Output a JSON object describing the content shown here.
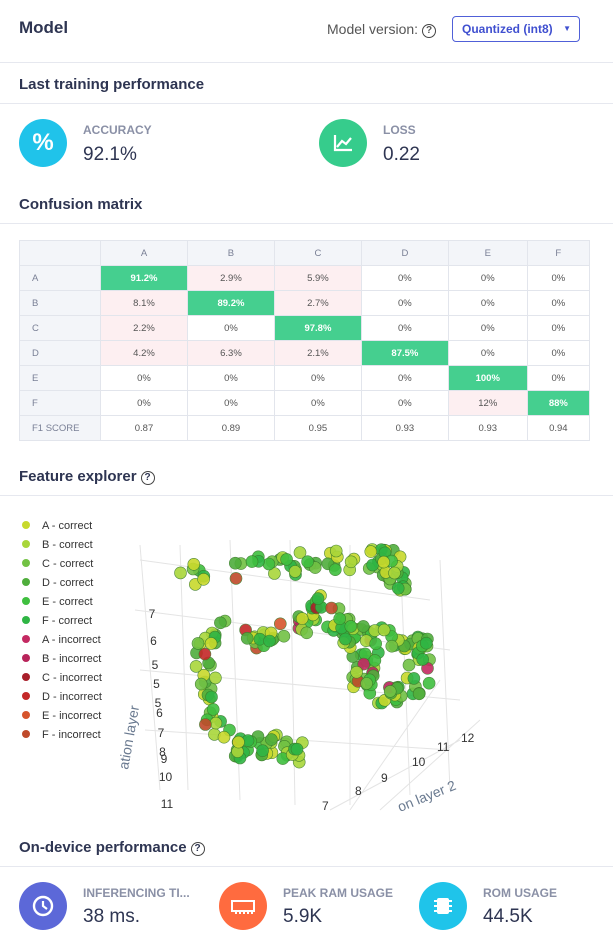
{
  "header": {
    "title": "Model",
    "version_label": "Model version:",
    "version_select": "Quantized (int8)"
  },
  "last_training": {
    "title": "Last training performance",
    "metrics": [
      {
        "label": "ACCURACY",
        "value": "92.1%"
      },
      {
        "label": "LOSS",
        "value": "0.22"
      }
    ]
  },
  "confusion_matrix": {
    "title": "Confusion matrix",
    "columns": [
      "A",
      "B",
      "C",
      "D",
      "E",
      "F"
    ],
    "rows": [
      {
        "label": "A",
        "cells": [
          "91.2%",
          "2.9%",
          "5.9%",
          "0%",
          "0%",
          "0%"
        ]
      },
      {
        "label": "B",
        "cells": [
          "8.1%",
          "89.2%",
          "2.7%",
          "0%",
          "0%",
          "0%"
        ]
      },
      {
        "label": "C",
        "cells": [
          "2.2%",
          "0%",
          "97.8%",
          "0%",
          "0%",
          "0%"
        ]
      },
      {
        "label": "D",
        "cells": [
          "4.2%",
          "6.3%",
          "2.1%",
          "87.5%",
          "0%",
          "0%"
        ]
      },
      {
        "label": "E",
        "cells": [
          "0%",
          "0%",
          "0%",
          "0%",
          "100%",
          "0%"
        ]
      },
      {
        "label": "F",
        "cells": [
          "0%",
          "0%",
          "0%",
          "0%",
          "12%",
          "88%"
        ]
      }
    ],
    "f1": {
      "label": "F1 SCORE",
      "values": [
        "0.87",
        "0.89",
        "0.95",
        "0.93",
        "0.93",
        "0.94"
      ]
    }
  },
  "feature_explorer": {
    "title": "Feature explorer",
    "legend": [
      {
        "name": "A - correct",
        "color": "#c8d92c"
      },
      {
        "name": "B - correct",
        "color": "#a9d63a"
      },
      {
        "name": "C - correct",
        "color": "#72c244"
      },
      {
        "name": "D - correct",
        "color": "#4fae3c"
      },
      {
        "name": "E - correct",
        "color": "#3fbf3f"
      },
      {
        "name": "F - correct",
        "color": "#2fb544"
      },
      {
        "name": "A - incorrect",
        "color": "#c42a62"
      },
      {
        "name": "B - incorrect",
        "color": "#b8245a"
      },
      {
        "name": "C - incorrect",
        "color": "#a81f2a"
      },
      {
        "name": "D - incorrect",
        "color": "#c42828"
      },
      {
        "name": "E - incorrect",
        "color": "#d6542c"
      },
      {
        "name": "F - incorrect",
        "color": "#bf4a2a"
      }
    ],
    "axis1_title": "ation layer",
    "axis2_title": "on layer 2",
    "axis1_ticks": [
      "7",
      "6",
      "5",
      "5",
      "5",
      "6",
      "7",
      "8",
      "9",
      "10",
      "11"
    ],
    "axis2_ticks": [
      "7",
      "8",
      "9",
      "10",
      "11",
      "12"
    ]
  },
  "on_device": {
    "title": "On-device performance",
    "metrics": [
      {
        "label": "INFERENCING TI...",
        "value": "38 ms."
      },
      {
        "label": "PEAK RAM USAGE",
        "value": "5.9K"
      },
      {
        "label": "ROM USAGE",
        "value": "44.5K"
      }
    ]
  }
}
